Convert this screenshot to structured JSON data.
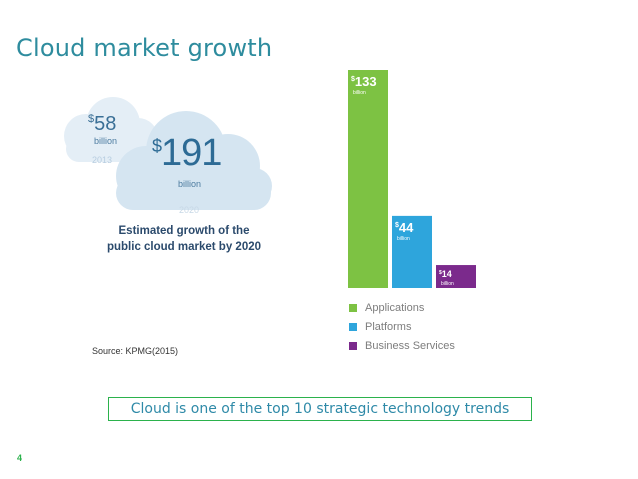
{
  "slide": {
    "title": "Cloud market growth",
    "source": "Source: KPMG(2015)",
    "trend_text": "Cloud is one of the top 10 strategic technology trends",
    "page_number": "4"
  },
  "infographic": {
    "small_cloud": {
      "currency": "$",
      "amount": "58",
      "unit": "billion",
      "year": "2013"
    },
    "big_cloud": {
      "currency": "$",
      "amount": "191",
      "unit": "billion",
      "year": "2020"
    },
    "caption_line1": "Estimated growth of the",
    "caption_line2": "public cloud market by 2020"
  },
  "colors": {
    "title": "#2e8c9e",
    "applications": "#7dc243",
    "platforms": "#2ea5dc",
    "business_services": "#7b2a8c",
    "accent_border": "#2bb24c"
  },
  "chart_data": {
    "type": "bar",
    "categories": [
      "Applications",
      "Platforms",
      "Business Services"
    ],
    "values": [
      133,
      44,
      14
    ],
    "value_labels": [
      {
        "currency": "$",
        "amount": "133",
        "unit": "billion"
      },
      {
        "currency": "$",
        "amount": "44",
        "unit": "billion"
      },
      {
        "currency": "$",
        "amount": "14",
        "unit": "billion"
      }
    ],
    "colors": [
      "#7dc243",
      "#2ea5dc",
      "#7b2a8c"
    ],
    "ylim": [
      0,
      133
    ],
    "legend": {
      "position": "bottom",
      "items": [
        "Applications",
        "Platforms",
        "Business Services"
      ]
    },
    "grid": false
  }
}
